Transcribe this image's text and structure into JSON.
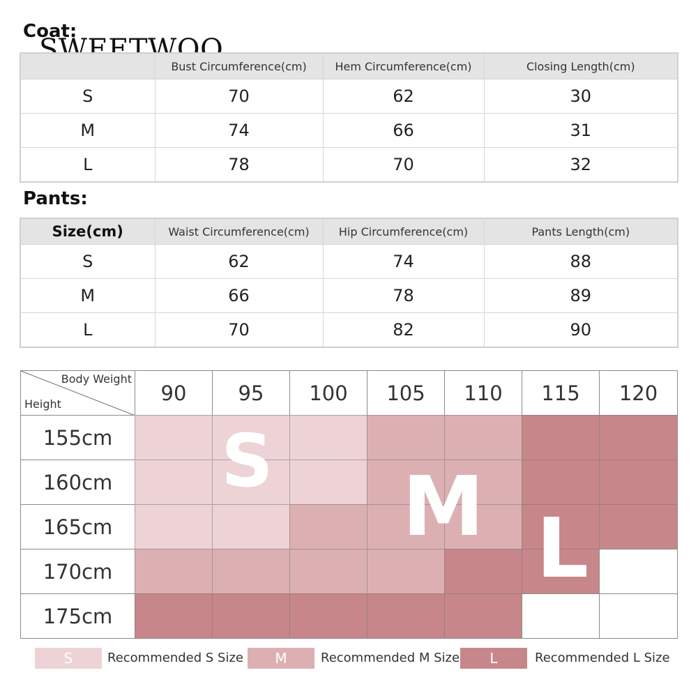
{
  "brand": "SWEETWOO",
  "coat": {
    "title": "Coat:",
    "headers": [
      "",
      "Bust Circumference(cm)",
      "Hem Circumference(cm)",
      "Closing Length(cm)"
    ],
    "rows": [
      [
        "S",
        "70",
        "62",
        "30"
      ],
      [
        "M",
        "74",
        "66",
        "31"
      ],
      [
        "L",
        "78",
        "70",
        "32"
      ]
    ]
  },
  "pants": {
    "title": "Pants:",
    "headers": [
      "Size(cm)",
      "Waist Circumference(cm)",
      "Hip Circumference(cm)",
      "Pants Length(cm)"
    ],
    "rows": [
      [
        "S",
        "62",
        "74",
        "88"
      ],
      [
        "M",
        "66",
        "78",
        "89"
      ],
      [
        "L",
        "70",
        "82",
        "90"
      ]
    ]
  },
  "chart": {
    "corner_top": "Body Weight",
    "corner_bottom": "Height",
    "weights": [
      "90",
      "95",
      "100",
      "105",
      "110",
      "115",
      "120"
    ],
    "heights": [
      "155cm",
      "160cm",
      "165cm",
      "170cm",
      "175cm"
    ],
    "grid": [
      [
        "S",
        "S",
        "S",
        "M",
        "M",
        "L",
        "L"
      ],
      [
        "S",
        "S",
        "S",
        "M",
        "M",
        "L",
        "L"
      ],
      [
        "S",
        "S",
        "M",
        "M",
        "M",
        "L",
        "L"
      ],
      [
        "M",
        "M",
        "M",
        "M",
        "L",
        "L",
        ""
      ],
      [
        "L",
        "L",
        "L",
        "L",
        "L",
        "",
        ""
      ]
    ],
    "big_labels": {
      "S": "S",
      "M": "M",
      "L": "L"
    },
    "colors": {
      "S": "#edd3d5",
      "M": "#dcb0b3",
      "L": "#c7878a",
      "none": "#ffffff"
    }
  },
  "legend": [
    {
      "code": "S",
      "label": "Recommended S Size"
    },
    {
      "code": "M",
      "label": "Recommended M Size"
    },
    {
      "code": "L",
      "label": "Recommended L Size"
    }
  ]
}
